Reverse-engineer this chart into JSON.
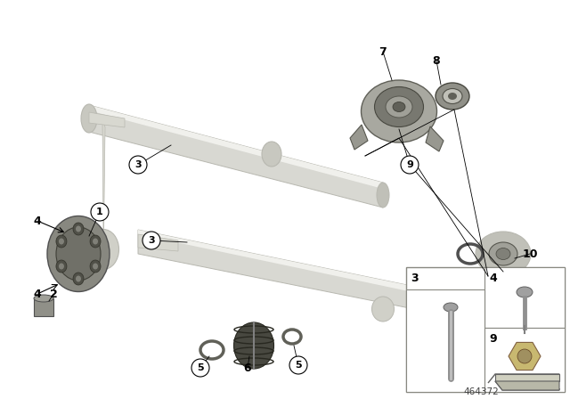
{
  "fig_width": 6.4,
  "fig_height": 4.48,
  "dpi": 100,
  "part_number": "464372",
  "bg_color": "#ffffff",
  "shaft_color": "#d8d8d2",
  "shaft_highlight": "#f0f0ec",
  "shaft_shadow": "#b8b8b0",
  "disc_color": "#909090",
  "disc_dark": "#606060",
  "bearing_color": "#a0a098",
  "bearing_dark": "#707068",
  "line_color": "#000000",
  "label_bg": "#ffffff",
  "box_color": "#c8c8c0",
  "nut_color": "#c8b870",
  "bolt_color": "#a0a0a0"
}
